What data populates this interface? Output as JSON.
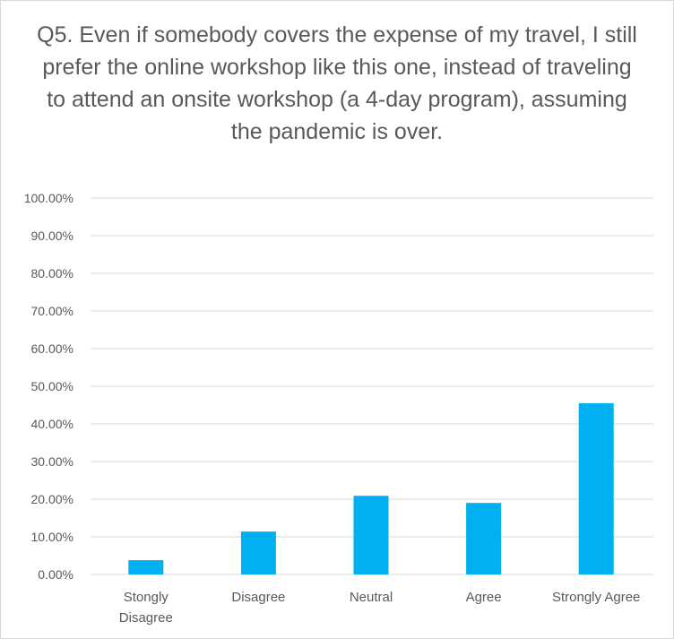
{
  "chart_data": {
    "type": "bar",
    "title": "Q5. Even if somebody covers the expense of my travel,  I still prefer the online workshop like this one, instead of traveling to attend an onsite workshop (a 4-day program), assuming the pandemic is over.",
    "categories": [
      "Stongly Disagree",
      "Disagree",
      "Neutral",
      "Agree",
      "Strongly Agree"
    ],
    "category_lines": [
      [
        "Stongly",
        "Disagree"
      ],
      [
        "Disagree"
      ],
      [
        "Neutral"
      ],
      [
        "Agree"
      ],
      [
        "Strongly Agree"
      ]
    ],
    "values": [
      3.8,
      11.4,
      20.9,
      19.0,
      45.5
    ],
    "ylim": [
      0,
      100
    ],
    "yticks": [
      0,
      10,
      20,
      30,
      40,
      50,
      60,
      70,
      80,
      90,
      100
    ],
    "ytick_labels": [
      "0.00%",
      "10.00%",
      "20.00%",
      "30.00%",
      "40.00%",
      "50.00%",
      "60.00%",
      "70.00%",
      "80.00%",
      "90.00%",
      "100.00%"
    ],
    "bar_color": "#00b0f0",
    "grid": true,
    "legend": "none",
    "xlabel": "",
    "ylabel": ""
  }
}
